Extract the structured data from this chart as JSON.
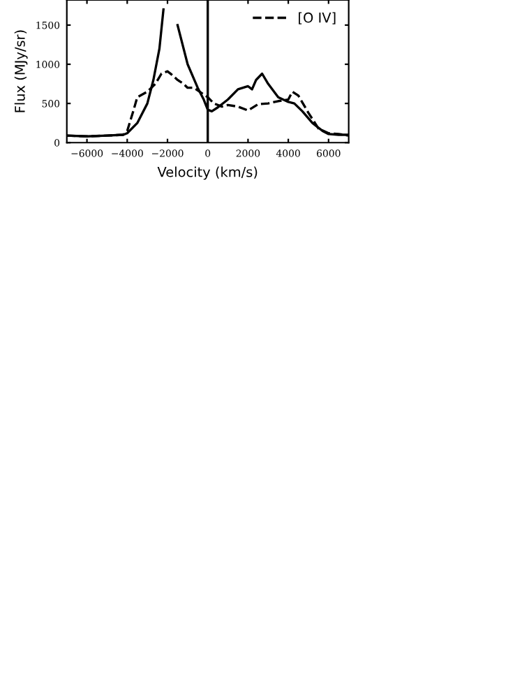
{
  "chart_data": {
    "type": "line",
    "xlabel": "Velocity (km/s)",
    "ylabel": "Flux (MJy/sr)",
    "xlim": [
      -7000,
      7000
    ],
    "ylim": [
      0,
      1820
    ],
    "xticks": [
      {
        "value": -6000,
        "label": "−6000"
      },
      {
        "value": -4000,
        "label": "−4000"
      },
      {
        "value": -2000,
        "label": "−2000"
      },
      0,
      2000,
      4000,
      6000
    ],
    "yticks": [
      0,
      500,
      1000,
      1500
    ],
    "legend": "top right",
    "grid": false,
    "ref_lines": [
      {
        "axis": "x",
        "value": 0,
        "color": "#000000"
      }
    ],
    "series": [
      {
        "color": "#000000",
        "line_style": "solid",
        "x": [
          -7000,
          -6000,
          -5000,
          -4200,
          -4000,
          -3500,
          -3000,
          -2700,
          -2400,
          -2200,
          -2100,
          -1700,
          -1500,
          -1000,
          -500,
          -200,
          0,
          200,
          500,
          1000,
          1500,
          2000,
          2200,
          2400,
          2700,
          3000,
          3500,
          4000,
          4300,
          4700,
          5200,
          5700,
          6000,
          6500,
          7000
        ],
        "values": [
          90,
          80,
          90,
          100,
          120,
          250,
          500,
          800,
          1200,
          1700,
          null,
          null,
          1500,
          1000,
          700,
          550,
          420,
          400,
          450,
          550,
          680,
          720,
          680,
          800,
          880,
          750,
          580,
          520,
          500,
          400,
          250,
          150,
          110,
          100,
          100
        ]
      },
      {
        "name": "[O IV]",
        "color": "#000000",
        "line_style": "dashed",
        "x": [
          -7000,
          -6000,
          -5000,
          -4200,
          -4000,
          -3700,
          -3500,
          -3000,
          -2600,
          -2300,
          -2000,
          -1800,
          -1500,
          -1200,
          -1000,
          -700,
          -400,
          0,
          300,
          700,
          1000,
          1500,
          2000,
          2500,
          3000,
          3500,
          4000,
          4200,
          4500,
          5000,
          5500,
          6000,
          6500,
          7000
        ],
        "values": [
          90,
          80,
          90,
          100,
          150,
          400,
          580,
          650,
          750,
          880,
          910,
          870,
          800,
          750,
          700,
          700,
          650,
          580,
          500,
          460,
          480,
          460,
          410,
          490,
          500,
          530,
          550,
          650,
          600,
          380,
          180,
          120,
          110,
          90
        ]
      }
    ]
  }
}
